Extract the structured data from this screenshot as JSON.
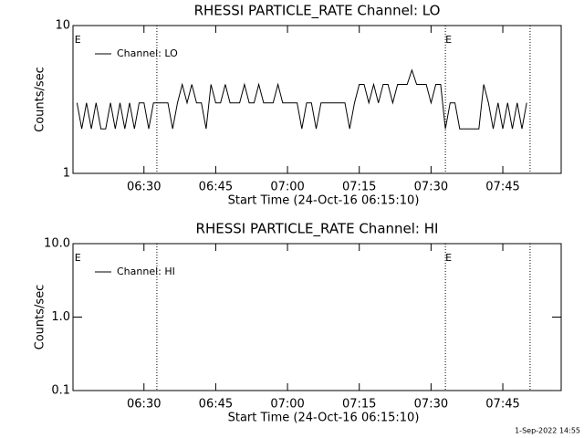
{
  "chart_data": [
    {
      "type": "line",
      "title": "RHESSI PARTICLE_RATE Channel: LO",
      "xlabel": "Start Time (24-Oct-16 06:15:10)",
      "ylabel": "Counts/sec",
      "x": [
        376,
        377,
        378,
        379,
        380,
        381,
        382,
        383,
        384,
        385,
        386,
        387,
        388,
        389,
        390,
        391,
        392,
        393,
        394,
        395,
        396,
        397,
        398,
        399,
        400,
        401,
        402,
        403,
        404,
        405,
        406,
        407,
        408,
        409,
        410,
        411,
        412,
        413,
        414,
        415,
        416,
        417,
        418,
        419,
        420,
        421,
        422,
        423,
        424,
        425,
        426,
        427,
        428,
        429,
        430,
        431,
        432,
        433,
        434,
        435,
        436,
        437,
        438,
        439,
        440,
        441,
        442,
        443,
        444,
        445,
        446,
        447,
        448,
        449,
        450,
        451,
        452,
        453,
        454,
        455,
        456,
        457,
        458,
        459,
        460,
        461,
        462,
        463,
        464,
        465,
        466,
        467,
        468,
        469,
        470
      ],
      "series": [
        {
          "name": "Channel: LO",
          "color": "#000000",
          "values": [
            3,
            2,
            3,
            2,
            3,
            2,
            2,
            3,
            2,
            3,
            2,
            3,
            2,
            3,
            3,
            2,
            3,
            3,
            3,
            3,
            2,
            3,
            4,
            3,
            4,
            3,
            3,
            2,
            4,
            3,
            3,
            4,
            3,
            3,
            3,
            4,
            3,
            3,
            4,
            3,
            3,
            3,
            4,
            3,
            3,
            3,
            3,
            2,
            3,
            3,
            2,
            3,
            3,
            3,
            3,
            3,
            3,
            2,
            3,
            4,
            4,
            3,
            4,
            3,
            4,
            4,
            3,
            4,
            4,
            4,
            5,
            4,
            4,
            4,
            3,
            4,
            4,
            2,
            3,
            3,
            2,
            2,
            2,
            2,
            2,
            4,
            3,
            2,
            3,
            2,
            3,
            2,
            3,
            2,
            3
          ]
        }
      ],
      "xlim": [
        375.17,
        477.2
      ],
      "xticks": [
        {
          "value": 390,
          "label": "06:30"
        },
        {
          "value": 405,
          "label": "06:45"
        },
        {
          "value": 420,
          "label": "07:00"
        },
        {
          "value": 435,
          "label": "07:15"
        },
        {
          "value": 450,
          "label": "07:30"
        },
        {
          "value": 465,
          "label": "07:45"
        }
      ],
      "ylim": [
        1,
        10
      ],
      "yticks": [
        1,
        10
      ],
      "log_y": true,
      "vlines": [
        392.7,
        453.0,
        470.7
      ],
      "flags": [
        {
          "x": 375.5,
          "label": "E"
        },
        {
          "x": 453.0,
          "label": "E"
        }
      ]
    },
    {
      "type": "line",
      "title": "RHESSI PARTICLE_RATE Channel: HI",
      "xlabel": "Start Time (24-Oct-16 06:15:10)",
      "ylabel": "Counts/sec",
      "x": [],
      "series": [
        {
          "name": "Channel: HI",
          "color": "#000000",
          "values": []
        }
      ],
      "xlim": [
        375.17,
        477.2
      ],
      "xticks": [
        {
          "value": 390,
          "label": "06:30"
        },
        {
          "value": 405,
          "label": "06:45"
        },
        {
          "value": 420,
          "label": "07:00"
        },
        {
          "value": 435,
          "label": "07:15"
        },
        {
          "value": 450,
          "label": "07:30"
        },
        {
          "value": 465,
          "label": "07:45"
        }
      ],
      "ylim": [
        0.1,
        10
      ],
      "yticks": [
        0.1,
        {
          "value": 1,
          "label": "1.0"
        },
        {
          "value": 10,
          "label": "10.0"
        }
      ],
      "log_y": true,
      "vlines": [
        392.7,
        453.0,
        470.7
      ],
      "flags": [
        {
          "x": 375.5,
          "label": "E"
        },
        {
          "x": 453.0,
          "label": "E"
        }
      ]
    }
  ],
  "footer": "1-Sep-2022 14:55"
}
